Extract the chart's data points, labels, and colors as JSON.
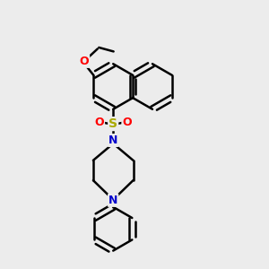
{
  "background_color": "#ececec",
  "bond_color": "#000000",
  "bond_width": 1.8,
  "O_color": "#ff0000",
  "N_color": "#0000cc",
  "S_color": "#aaaa00",
  "figsize": [
    3.0,
    3.0
  ],
  "dpi": 100,
  "xlim": [
    0,
    10
  ],
  "ylim": [
    0,
    10
  ]
}
